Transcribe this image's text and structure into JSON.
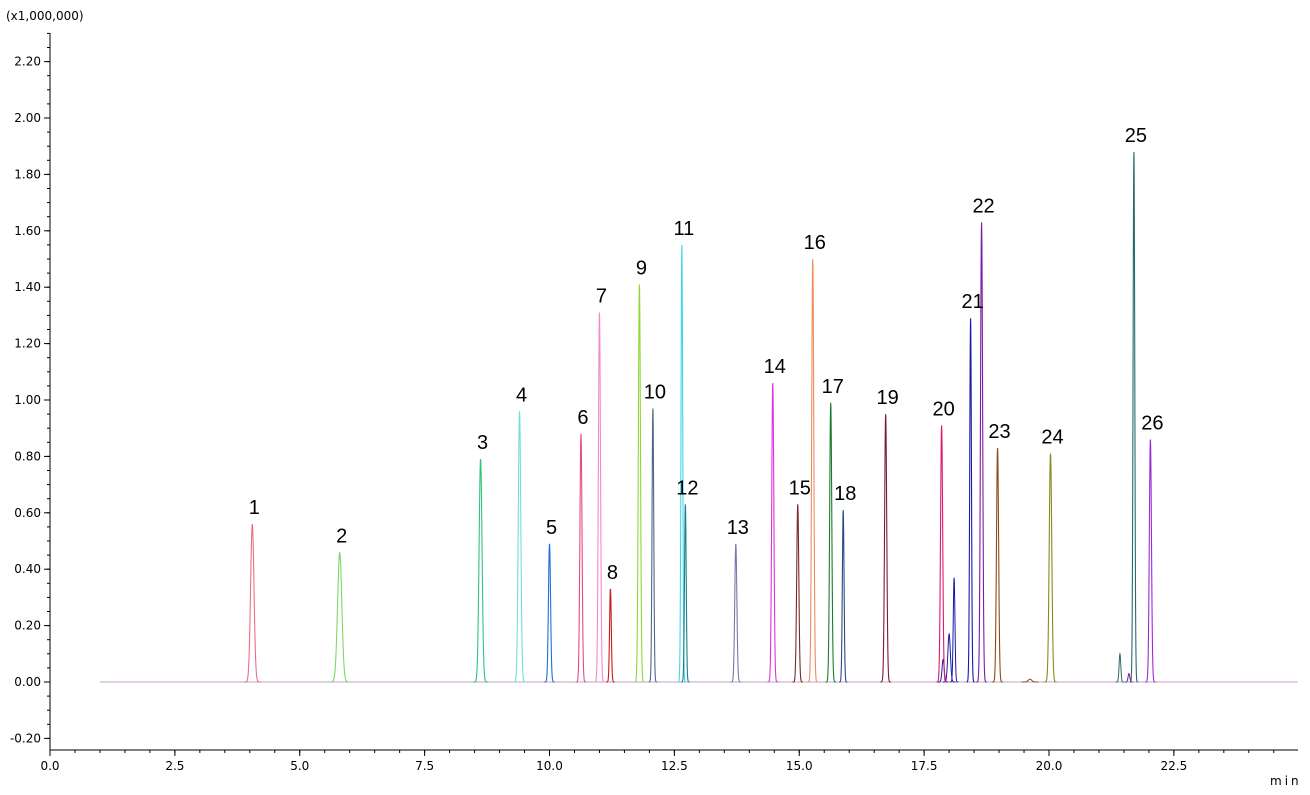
{
  "chart_data": {
    "type": "line",
    "title": "",
    "xlabel": "min",
    "ylabel": "",
    "y_unit_label": "(x1,000,000)",
    "xlim": [
      0.0,
      25.0
    ],
    "ylim": [
      -0.22,
      2.3
    ],
    "x_ticks": [
      "0.0",
      "2.5",
      "5.0",
      "7.5",
      "10.0",
      "12.5",
      "15.0",
      "17.5",
      "20.0",
      "22.5"
    ],
    "y_ticks": [
      "-0.20",
      "0.00",
      "0.20",
      "0.40",
      "0.60",
      "0.80",
      "1.00",
      "1.20",
      "1.40",
      "1.60",
      "1.80",
      "2.00",
      "2.20"
    ],
    "grid": false,
    "baseline_range": [
      1.0,
      25.0
    ],
    "peaks": [
      {
        "label": "1",
        "rt": 4.05,
        "height": 0.56,
        "width": 0.08,
        "color": "#e8708a"
      },
      {
        "label": "2",
        "rt": 5.8,
        "height": 0.46,
        "width": 0.1,
        "color": "#7ed66a"
      },
      {
        "label": "3",
        "rt": 8.62,
        "height": 0.79,
        "width": 0.07,
        "color": "#2ec27a"
      },
      {
        "label": "4",
        "rt": 9.4,
        "height": 0.96,
        "width": 0.06,
        "color": "#6fe0d4"
      },
      {
        "label": "5",
        "rt": 10.0,
        "height": 0.49,
        "width": 0.05,
        "color": "#1c6fd8"
      },
      {
        "label": "6",
        "rt": 10.63,
        "height": 0.88,
        "width": 0.05,
        "color": "#e24c84"
      },
      {
        "label": "7",
        "rt": 11.0,
        "height": 1.31,
        "width": 0.05,
        "color": "#f08ad0"
      },
      {
        "label": "8",
        "rt": 11.22,
        "height": 0.33,
        "width": 0.04,
        "color": "#c41a1a"
      },
      {
        "label": "9",
        "rt": 11.8,
        "height": 1.41,
        "width": 0.05,
        "color": "#8fd63a"
      },
      {
        "label": "10",
        "rt": 12.07,
        "height": 0.97,
        "width": 0.04,
        "color": "#4a6a8a"
      },
      {
        "label": "11",
        "rt": 12.65,
        "height": 1.55,
        "width": 0.04,
        "color": "#3fd8e8"
      },
      {
        "label": "12",
        "rt": 12.72,
        "height": 0.63,
        "width": 0.04,
        "color": "#1c7f8a"
      },
      {
        "label": "13",
        "rt": 13.73,
        "height": 0.49,
        "width": 0.05,
        "color": "#7a78b0"
      },
      {
        "label": "14",
        "rt": 14.47,
        "height": 1.06,
        "width": 0.05,
        "color": "#dd33dd"
      },
      {
        "label": "15",
        "rt": 14.97,
        "height": 0.63,
        "width": 0.05,
        "color": "#7a2a2a"
      },
      {
        "label": "16",
        "rt": 15.27,
        "height": 1.5,
        "width": 0.05,
        "color": "#f08a5a"
      },
      {
        "label": "17",
        "rt": 15.63,
        "height": 0.99,
        "width": 0.05,
        "color": "#1c7a2a"
      },
      {
        "label": "18",
        "rt": 15.88,
        "height": 0.61,
        "width": 0.04,
        "color": "#2a4a8a"
      },
      {
        "label": "19",
        "rt": 16.73,
        "height": 0.95,
        "width": 0.05,
        "color": "#7a1a3a"
      },
      {
        "label": "20",
        "rt": 17.85,
        "height": 0.91,
        "width": 0.05,
        "color": "#dd1a6a"
      },
      {
        "label": "21",
        "rt": 18.43,
        "height": 1.29,
        "width": 0.04,
        "color": "#1a1aa8"
      },
      {
        "label": "22",
        "rt": 18.65,
        "height": 1.63,
        "width": 0.05,
        "color": "#7a1aa8"
      },
      {
        "label": "23",
        "rt": 18.97,
        "height": 0.83,
        "width": 0.05,
        "color": "#8a4a1a"
      },
      {
        "label": "24",
        "rt": 20.03,
        "height": 0.81,
        "width": 0.06,
        "color": "#8a8a1a"
      },
      {
        "label": "25",
        "rt": 21.7,
        "height": 1.88,
        "width": 0.04,
        "color": "#2a6a6a"
      },
      {
        "label": "26",
        "rt": 22.03,
        "height": 0.86,
        "width": 0.05,
        "color": "#9a2ad8"
      }
    ],
    "minor_peaks": [
      {
        "rt": 17.88,
        "height": 0.08,
        "width": 0.05,
        "color": "#1a1aa8"
      },
      {
        "rt": 18.1,
        "height": 0.37,
        "width": 0.04,
        "color": "#1a1aa8"
      },
      {
        "rt": 18.0,
        "height": 0.17,
        "width": 0.06,
        "color": "#1a1aa8"
      },
      {
        "rt": 21.42,
        "height": 0.1,
        "width": 0.04,
        "color": "#2a6a6a"
      },
      {
        "rt": 21.6,
        "height": 0.03,
        "width": 0.04,
        "color": "#7a1aa8"
      },
      {
        "rt": 19.62,
        "height": 0.01,
        "width": 0.08,
        "color": "#8a4a1a"
      }
    ]
  }
}
